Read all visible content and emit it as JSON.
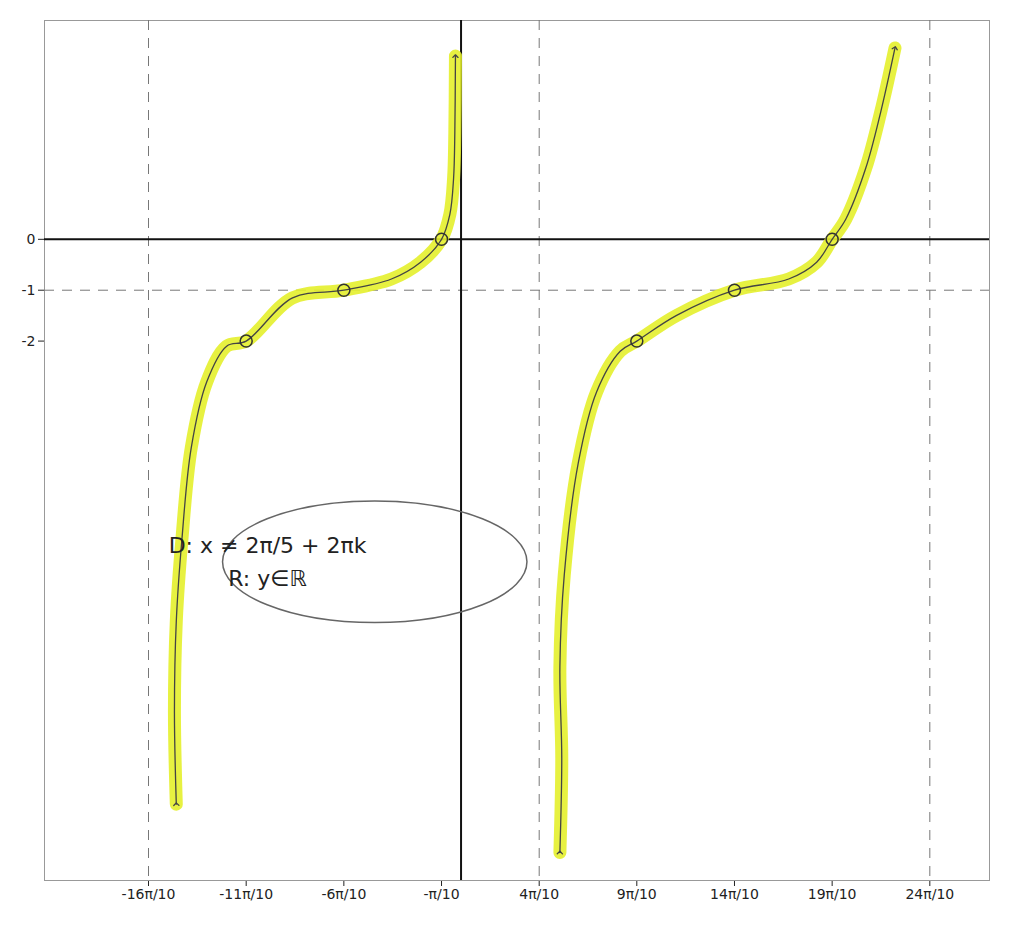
{
  "chart_data": {
    "type": "line",
    "xlim": [
      -6.7,
      8.5
    ],
    "ylim": [
      -12.6,
      4.3
    ],
    "xticks": [
      {
        "value": -5.027,
        "label": "-16π/10"
      },
      {
        "value": -3.456,
        "label": "-11π/10"
      },
      {
        "value": -1.885,
        "label": "-6π/10"
      },
      {
        "value": -0.314,
        "label": "-π/10"
      },
      {
        "value": 1.257,
        "label": "4π/10"
      },
      {
        "value": 2.827,
        "label": "9π/10"
      },
      {
        "value": 4.398,
        "label": "14π/10"
      },
      {
        "value": 5.969,
        "label": "19π/10"
      },
      {
        "value": 7.54,
        "label": "24π/10"
      }
    ],
    "yticks": [
      -2,
      -1,
      0
    ],
    "grid": false,
    "series": [
      {
        "color": "#e4ef2c",
        "x": [
          -4.58,
          -4.61,
          -4.58,
          -4.49,
          -4.34,
          -4.09,
          -3.77,
          -3.456,
          -2.71,
          -1.885,
          -1.12,
          -0.65,
          -0.314,
          -0.18,
          -0.12,
          -0.1,
          -0.09
        ],
        "values": [
          -11.1,
          -9.3,
          -7.5,
          -5.9,
          -4.1,
          -2.8,
          -2.1,
          -2,
          -1.15,
          -1,
          -0.78,
          -0.45,
          0,
          0.49,
          1.2,
          2.1,
          3.6
        ]
      },
      {
        "color": "#e4ef2c",
        "x": [
          1.59,
          1.62,
          1.59,
          1.66,
          1.885,
          2.18,
          2.56,
          2.827,
          3.46,
          4.398,
          5.27,
          5.72,
          5.969,
          6.19,
          6.51,
          6.75,
          6.98
        ],
        "values": [
          -12.05,
          -10.2,
          -8.4,
          -6.6,
          -4.4,
          -3.0,
          -2.2,
          -2,
          -1.5,
          -1,
          -0.78,
          -0.45,
          0,
          0.4,
          1.4,
          2.5,
          3.76
        ]
      }
    ],
    "points": {
      "x": [
        -3.456,
        -1.885,
        -0.314,
        2.827,
        4.398,
        5.969
      ],
      "values": [
        -2,
        -1,
        0,
        -2,
        -1,
        0
      ],
      "marker": "circle"
    },
    "asymptotes": {
      "x": [
        -5.027,
        1.257,
        7.54
      ],
      "line_style": "dashed"
    },
    "reference_line": {
      "y": -1,
      "line_style": "dashed"
    },
    "annotations": [
      "D: x ≠ 2π/5 + 2πk",
      "R: y∈ℝ"
    ]
  }
}
